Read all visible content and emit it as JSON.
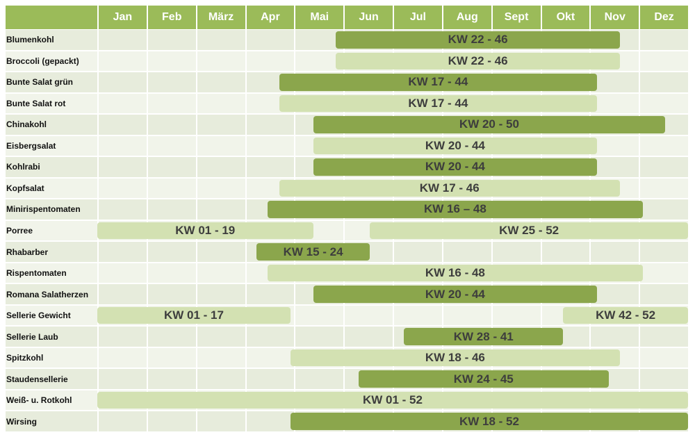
{
  "header": {
    "months": [
      "Jan",
      "Feb",
      "März",
      "Apr",
      "Mai",
      "Jun",
      "Jul",
      "Aug",
      "Sept",
      "Okt",
      "Nov",
      "Dez"
    ]
  },
  "rows": [
    {
      "name": "Blumenkohl",
      "bars": [
        {
          "label": "KW 22 - 46",
          "color": "#8ba64c"
        }
      ]
    },
    {
      "name": "Broccoli (gepackt)",
      "bars": [
        {
          "label": "KW 22 - 46",
          "color": "#d3e1b2"
        }
      ]
    },
    {
      "name": "Bunte Salat grün",
      "bars": [
        {
          "label": "KW 17 - 44",
          "color": "#8ba64c"
        }
      ]
    },
    {
      "name": "Bunte Salat rot",
      "bars": [
        {
          "label": "KW 17 - 44",
          "color": "#d3e1b2"
        }
      ]
    },
    {
      "name": "Chinakohl",
      "bars": [
        {
          "label": "KW 20 - 50",
          "color": "#8ba64c"
        }
      ]
    },
    {
      "name": "Eisbergsalat",
      "bars": [
        {
          "label": "KW 20 - 44",
          "color": "#d3e1b2"
        }
      ]
    },
    {
      "name": "Kohlrabi",
      "bars": [
        {
          "label": "KW 20 - 44",
          "color": "#8ba64c"
        }
      ]
    },
    {
      "name": "Kopfsalat",
      "bars": [
        {
          "label": "KW 17 - 46",
          "color": "#d3e1b2"
        }
      ]
    },
    {
      "name": "Minirispentomaten",
      "bars": [
        {
          "label": "KW 16 – 48",
          "color": "#8ba64c"
        }
      ]
    },
    {
      "name": "Porree",
      "bars": [
        {
          "label": "KW 01 - 19",
          "color": "#d3e1b2"
        },
        {
          "label": "KW 25 - 52",
          "color": "#d3e1b2"
        }
      ]
    },
    {
      "name": "Rhabarber",
      "bars": [
        {
          "label": "KW 15 - 24",
          "color": "#8ba64c"
        }
      ]
    },
    {
      "name": "Rispentomaten",
      "bars": [
        {
          "label": "KW 16 - 48",
          "color": "#d3e1b2"
        }
      ]
    },
    {
      "name": "Romana Salatherzen",
      "bars": [
        {
          "label": "KW 20 - 44",
          "color": "#8ba64c"
        }
      ]
    },
    {
      "name": "Sellerie Gewicht",
      "bars": [
        {
          "label": "KW 01 - 17",
          "color": "#d3e1b2"
        },
        {
          "label": "KW 42 - 52",
          "color": "#d3e1b2"
        }
      ]
    },
    {
      "name": "Sellerie Laub",
      "bars": [
        {
          "label": "KW 28 - 41",
          "color": "#8ba64c"
        }
      ]
    },
    {
      "name": "Spitzkohl",
      "bars": [
        {
          "label": "KW 18 - 46",
          "color": "#d3e1b2"
        }
      ]
    },
    {
      "name": "Staudensellerie",
      "bars": [
        {
          "label": "KW 24 - 45",
          "color": "#8ba64c"
        }
      ]
    },
    {
      "name": "Weiß- u. Rotkohl",
      "bars": [
        {
          "label": "KW 01 - 52",
          "color": "#d3e1b2"
        }
      ]
    },
    {
      "name": "Wirsing",
      "bars": [
        {
          "label": "KW 18 - 52",
          "color": "#8ba64c"
        }
      ]
    }
  ]
}
